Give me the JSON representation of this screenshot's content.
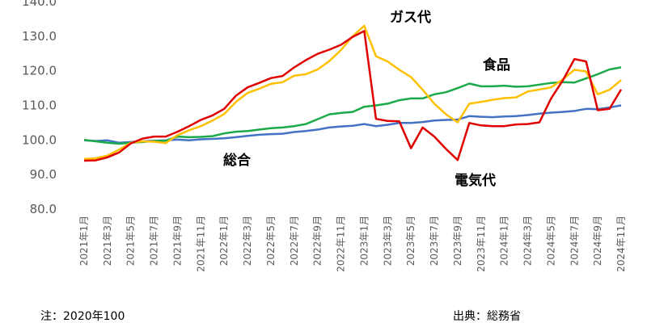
{
  "notes": {
    "left": "注：2020年100",
    "right": "出典：総務省"
  },
  "chart_data": {
    "type": "line",
    "title": "",
    "xlabel": "",
    "ylabel": "",
    "ylim": [
      80,
      140
    ],
    "yticks": [
      "80.0",
      "90.0",
      "100.0",
      "110.0",
      "120.0",
      "130.0",
      "140.0"
    ],
    "grid": false,
    "categories": [
      "2021年1月",
      "2021年2月",
      "2021年3月",
      "2021年4月",
      "2021年5月",
      "2021年6月",
      "2021年7月",
      "2021年8月",
      "2021年9月",
      "2021年10月",
      "2021年11月",
      "2021年12月",
      "2022年1月",
      "2022年2月",
      "2022年3月",
      "2022年4月",
      "2022年5月",
      "2022年6月",
      "2022年7月",
      "2022年8月",
      "2022年9月",
      "2022年10月",
      "2022年11月",
      "2022年12月",
      "2023年1月",
      "2023年2月",
      "2023年3月",
      "2023年4月",
      "2023年5月",
      "2023年6月",
      "2023年7月",
      "2023年8月",
      "2023年9月",
      "2023年10月",
      "2023年11月",
      "2023年12月",
      "2024年1月",
      "2024年2月",
      "2024年3月",
      "2024年4月",
      "2024年5月",
      "2024年6月",
      "2024年7月",
      "2024年8月",
      "2024年9月",
      "2024年10月",
      "2024年11月"
    ],
    "series": [
      {
        "name": "総合",
        "color": "#4472C4",
        "values": [
          99.9,
          99.7,
          99.9,
          99.2,
          99.4,
          99.6,
          99.8,
          99.9,
          100.1,
          99.9,
          100.2,
          100.3,
          100.5,
          100.8,
          101.2,
          101.5,
          101.7,
          101.8,
          102.3,
          102.6,
          103.0,
          103.6,
          103.9,
          104.1,
          104.6,
          104.0,
          104.4,
          104.9,
          104.9,
          105.2,
          105.6,
          105.8,
          105.9,
          106.9,
          106.7,
          106.6,
          106.8,
          106.9,
          107.2,
          107.6,
          107.9,
          108.1,
          108.4,
          109.0,
          108.9,
          109.4,
          110.0
        ]
      },
      {
        "name": "食品",
        "color": "#1BAA4A",
        "values": [
          100.0,
          99.6,
          99.2,
          98.9,
          99.2,
          99.4,
          99.7,
          99.8,
          101.0,
          100.8,
          100.9,
          101.1,
          101.9,
          102.4,
          102.6,
          103.0,
          103.4,
          103.6,
          104.0,
          104.6,
          106.0,
          107.4,
          107.8,
          108.1,
          109.6,
          110.0,
          110.5,
          111.5,
          112.0,
          112.0,
          113.2,
          113.8,
          115.0,
          116.3,
          115.5,
          115.5,
          115.7,
          115.4,
          115.5,
          116.0,
          116.5,
          116.7,
          116.6,
          117.8,
          119.0,
          120.4,
          121.0
        ]
      },
      {
        "name": "ガス代",
        "color": "#FFC000",
        "values": [
          94.5,
          94.7,
          95.5,
          97.2,
          99.2,
          99.6,
          99.5,
          99.1,
          101.4,
          102.8,
          104.0,
          105.6,
          107.5,
          111.0,
          113.6,
          114.8,
          116.2,
          116.7,
          118.6,
          119.0,
          120.4,
          122.8,
          126.0,
          130.0,
          133.0,
          124.2,
          122.7,
          120.3,
          118.2,
          114.5,
          110.5,
          107.4,
          105.1,
          110.5,
          111.0,
          111.6,
          112.1,
          112.3,
          114.0,
          114.6,
          115.2,
          117.5,
          120.3,
          119.8,
          113.2,
          114.5,
          117.3
        ]
      },
      {
        "name": "電気代",
        "color": "#E00000",
        "values": [
          94.0,
          94.1,
          95.0,
          96.4,
          99.0,
          100.4,
          101.0,
          101.0,
          102.4,
          104.0,
          105.8,
          107.1,
          109.0,
          112.8,
          115.2,
          116.5,
          117.9,
          118.5,
          121.0,
          123.1,
          124.9,
          126.1,
          127.5,
          129.8,
          131.5,
          106.1,
          105.5,
          105.4,
          97.6,
          103.6,
          101.0,
          97.4,
          94.2,
          104.9,
          104.2,
          104.0,
          104.0,
          104.5,
          104.6,
          105.1,
          112.0,
          117.2,
          123.4,
          122.7,
          108.6,
          109.0,
          114.6
        ]
      }
    ]
  }
}
